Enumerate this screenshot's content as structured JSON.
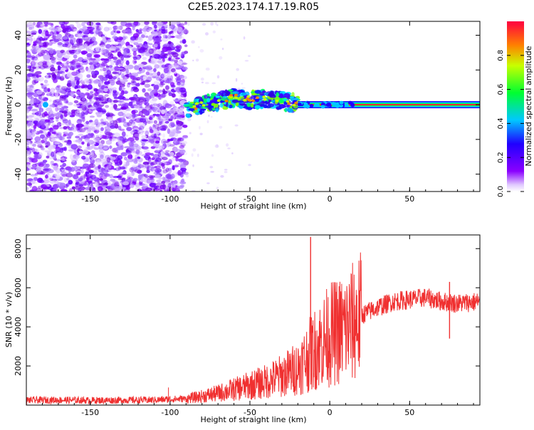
{
  "title": "C2E5.2023.174.17.19.R05",
  "chart_data": [
    {
      "type": "heatmap",
      "xlabel": "Height of straight line (km)",
      "ylabel": "Frequency (Hz)",
      "xlim": [
        -190,
        94
      ],
      "ylim": [
        -50,
        48
      ],
      "xticks": [
        -150,
        -100,
        -50,
        0,
        50
      ],
      "yticks": [
        -40,
        -20,
        0,
        20,
        40
      ],
      "colorbar": {
        "label": "Normalized spectral amplitude",
        "range": [
          0.0,
          1.0
        ],
        "ticks": [
          0.0,
          0.2,
          0.4,
          0.6,
          0.8
        ],
        "tick_labels": [
          "0.0",
          "0.2",
          "0.4",
          "0.6",
          "0.8"
        ],
        "colormap": [
          "#ffffff",
          "#8a00ff",
          "#2000ff",
          "#00c8ff",
          "#00ff30",
          "#c8ff00",
          "#ff8000",
          "#ff0040"
        ]
      },
      "regions": [
        {
          "name": "noise",
          "x_range": [
            -190,
            -90
          ],
          "freq_range": [
            -50,
            48
          ],
          "amplitude": 0.05
        },
        {
          "name": "sparse-noise",
          "x_range": [
            -90,
            -50
          ],
          "freq_range": [
            -50,
            48
          ],
          "amplitude": 0.02
        },
        {
          "name": "signal-band",
          "x_range": [
            -90,
            -20
          ],
          "freq_center": [
            [
              -90,
              -4
            ],
            [
              -80,
              0
            ],
            [
              -60,
              4
            ],
            [
              -50,
              3
            ],
            [
              -40,
              3
            ],
            [
              -20,
              1
            ]
          ],
          "amplitude": 0.3
        },
        {
          "name": "carrier-line",
          "x_range": [
            -20,
            94
          ],
          "freq_center": 0,
          "amplitude": 0.95
        }
      ]
    },
    {
      "type": "line",
      "xlabel": "Height of straight line (km)",
      "ylabel": "SNR (10 * v/v)",
      "xlim": [
        -190,
        94
      ],
      "ylim": [
        0,
        8700
      ],
      "xticks": [
        -150,
        -100,
        -50,
        0,
        50
      ],
      "yticks": [
        2000,
        4000,
        6000,
        8000
      ],
      "grid": false,
      "color": "#f03030",
      "x": [
        -190,
        -170,
        -150,
        -130,
        -110,
        -100,
        -90,
        -80,
        -70,
        -60,
        -50,
        -40,
        -30,
        -20,
        -10,
        0,
        10,
        20,
        30,
        40,
        50,
        60,
        70,
        80,
        94
      ],
      "y": [
        250,
        260,
        240,
        250,
        260,
        300,
        320,
        450,
        600,
        800,
        1000,
        1200,
        1500,
        1900,
        2800,
        3600,
        3900,
        4600,
        5000,
        5300,
        5400,
        5500,
        5300,
        5200,
        5300
      ],
      "annotations": [
        {
          "x": -12,
          "y": 8600
        },
        {
          "x": 75,
          "y": 6300
        }
      ]
    }
  ]
}
